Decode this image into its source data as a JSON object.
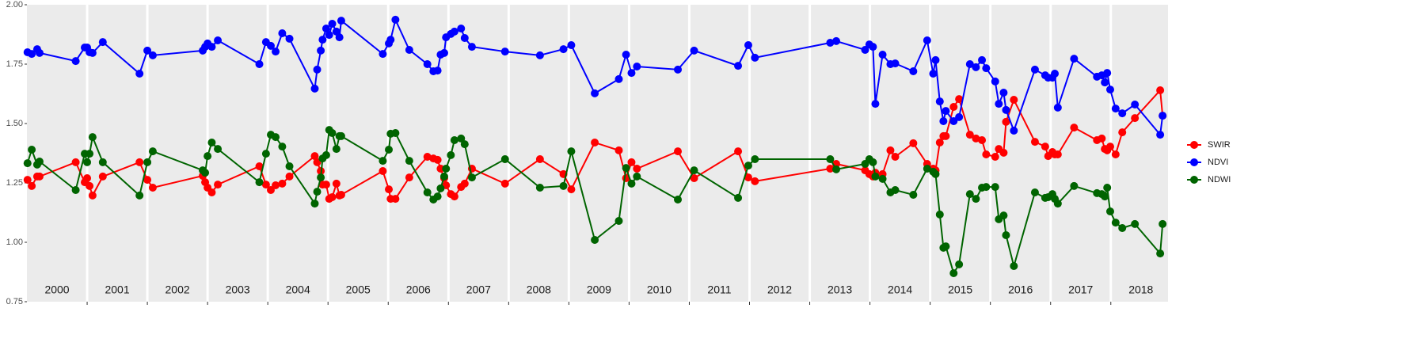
{
  "chart_data": {
    "type": "line",
    "x": [
      2000.01,
      2000.08,
      2000.17,
      2000.21,
      2000.81,
      2000.96,
      2001.0,
      2001.04,
      2001.09,
      2001.26,
      2001.87,
      2002.0,
      2002.09,
      2002.92,
      2002.96,
      2003.0,
      2003.07,
      2003.17,
      2003.86,
      2003.97,
      2004.05,
      2004.13,
      2004.24,
      2004.36,
      2004.78,
      2004.82,
      2004.88,
      2004.91,
      2004.97,
      2005.02,
      2005.07,
      2005.14,
      2005.19,
      2005.22,
      2005.91,
      2006.01,
      2006.04,
      2006.12,
      2006.35,
      2006.65,
      2006.75,
      2006.82,
      2006.87,
      2006.93,
      2006.96,
      2007.04,
      2007.1,
      2007.21,
      2007.27,
      2007.39,
      2007.94,
      2008.52,
      2008.91,
      2009.04,
      2009.43,
      2009.83,
      2009.95,
      2010.04,
      2010.13,
      2010.81,
      2011.08,
      2011.81,
      2011.98,
      2012.09,
      2013.34,
      2013.44,
      2013.92,
      2013.99,
      2014.05,
      2014.09,
      2014.21,
      2014.34,
      2014.42,
      2014.72,
      2014.95,
      2015.05,
      2015.09,
      2015.16,
      2015.22,
      2015.26,
      2015.39,
      2015.48,
      2015.66,
      2015.76,
      2015.86,
      2015.93,
      2016.08,
      2016.14,
      2016.22,
      2016.26,
      2016.39,
      2016.74,
      2016.91,
      2016.96,
      2017.03,
      2017.07,
      2017.12,
      2017.39,
      2017.77,
      2017.85,
      2017.9,
      2017.94,
      2017.99,
      2018.08,
      2018.19,
      2018.4,
      2018.82,
      2018.86
    ],
    "series": [
      {
        "name": "SWIR",
        "color": "#ff0000",
        "values": [
          1.263,
          1.237,
          1.277,
          1.277,
          1.337,
          1.253,
          1.27,
          1.237,
          1.197,
          1.277,
          1.337,
          1.263,
          1.23,
          1.28,
          1.253,
          1.23,
          1.21,
          1.243,
          1.32,
          1.243,
          1.22,
          1.24,
          1.247,
          1.277,
          1.363,
          1.337,
          1.3,
          1.243,
          1.243,
          1.183,
          1.19,
          1.247,
          1.197,
          1.2,
          1.3,
          1.223,
          1.183,
          1.183,
          1.273,
          1.36,
          1.353,
          1.347,
          1.31,
          1.27,
          1.24,
          1.203,
          1.193,
          1.233,
          1.247,
          1.31,
          1.247,
          1.35,
          1.287,
          1.223,
          1.42,
          1.387,
          1.27,
          1.337,
          1.31,
          1.383,
          1.27,
          1.383,
          1.273,
          1.257,
          1.31,
          1.33,
          1.303,
          1.287,
          1.277,
          1.293,
          1.287,
          1.387,
          1.36,
          1.417,
          1.33,
          1.31,
          1.303,
          1.42,
          1.447,
          1.447,
          1.57,
          1.603,
          1.453,
          1.437,
          1.43,
          1.37,
          1.36,
          1.393,
          1.377,
          1.507,
          1.6,
          1.423,
          1.403,
          1.363,
          1.38,
          1.37,
          1.37,
          1.483,
          1.43,
          1.437,
          1.393,
          1.387,
          1.403,
          1.37,
          1.463,
          1.523,
          1.64,
          1.533
        ]
      },
      {
        "name": "NDVI",
        "color": "#0000ff",
        "values": [
          1.8,
          1.793,
          1.813,
          1.797,
          1.763,
          1.82,
          1.82,
          1.8,
          1.797,
          1.843,
          1.71,
          1.807,
          1.787,
          1.807,
          1.823,
          1.837,
          1.823,
          1.85,
          1.75,
          1.843,
          1.827,
          1.803,
          1.88,
          1.857,
          1.647,
          1.727,
          1.807,
          1.853,
          1.9,
          1.873,
          1.92,
          1.887,
          1.863,
          1.933,
          1.793,
          1.837,
          1.853,
          1.937,
          1.81,
          1.75,
          1.72,
          1.723,
          1.79,
          1.797,
          1.863,
          1.877,
          1.887,
          1.9,
          1.86,
          1.823,
          1.803,
          1.787,
          1.813,
          1.83,
          1.627,
          1.687,
          1.79,
          1.713,
          1.74,
          1.727,
          1.807,
          1.743,
          1.83,
          1.777,
          1.84,
          1.847,
          1.81,
          1.833,
          1.823,
          1.583,
          1.79,
          1.75,
          1.753,
          1.72,
          1.85,
          1.71,
          1.767,
          1.593,
          1.51,
          1.553,
          1.51,
          1.527,
          1.75,
          1.737,
          1.767,
          1.733,
          1.677,
          1.583,
          1.63,
          1.557,
          1.47,
          1.727,
          1.703,
          1.693,
          1.693,
          1.71,
          1.567,
          1.773,
          1.697,
          1.703,
          1.673,
          1.713,
          1.643,
          1.563,
          1.543,
          1.58,
          1.453,
          1.533
        ]
      },
      {
        "name": "NDWI",
        "color": "#006400",
        "values": [
          1.333,
          1.39,
          1.327,
          1.34,
          1.22,
          1.373,
          1.337,
          1.373,
          1.443,
          1.337,
          1.197,
          1.337,
          1.383,
          1.303,
          1.293,
          1.363,
          1.42,
          1.393,
          1.253,
          1.373,
          1.453,
          1.443,
          1.403,
          1.32,
          1.163,
          1.213,
          1.273,
          1.353,
          1.367,
          1.473,
          1.46,
          1.393,
          1.447,
          1.447,
          1.343,
          1.39,
          1.457,
          1.46,
          1.343,
          1.21,
          1.18,
          1.193,
          1.227,
          1.277,
          1.31,
          1.367,
          1.43,
          1.437,
          1.413,
          1.273,
          1.35,
          1.23,
          1.237,
          1.383,
          1.01,
          1.09,
          1.313,
          1.247,
          1.277,
          1.18,
          1.303,
          1.187,
          1.323,
          1.35,
          1.35,
          1.307,
          1.33,
          1.35,
          1.337,
          1.277,
          1.267,
          1.21,
          1.22,
          1.2,
          1.31,
          1.297,
          1.287,
          1.117,
          0.977,
          0.983,
          0.87,
          0.907,
          1.203,
          1.183,
          1.23,
          1.233,
          1.233,
          1.097,
          1.113,
          1.03,
          0.9,
          1.21,
          1.187,
          1.19,
          1.203,
          1.183,
          1.163,
          1.237,
          1.207,
          1.203,
          1.193,
          1.23,
          1.13,
          1.083,
          1.06,
          1.077,
          0.953,
          1.077
        ]
      }
    ],
    "xlim": [
      2000,
      2018.95
    ],
    "year_boundaries": [
      2001,
      2002,
      2003,
      2004,
      2005,
      2006,
      2007,
      2008,
      2009,
      2010,
      2011,
      2012,
      2013,
      2014,
      2015,
      2016,
      2017,
      2018
    ],
    "year_labels": [
      "2000",
      "2001",
      "2002",
      "2003",
      "2004",
      "2005",
      "2006",
      "2007",
      "2008",
      "2009",
      "2010",
      "2011",
      "2012",
      "2013",
      "2014",
      "2015",
      "2016",
      "2017",
      "2018"
    ],
    "ylim": [
      0.75,
      2.0
    ],
    "yticks": [
      {
        "value": 0.75,
        "label": "0.75"
      },
      {
        "value": 1.0,
        "label": "1.00"
      },
      {
        "value": 1.25,
        "label": "1.25"
      },
      {
        "value": 1.5,
        "label": "1.50"
      },
      {
        "value": 1.75,
        "label": "1.75"
      },
      {
        "value": 2.0,
        "label": "2.00"
      }
    ],
    "grid": false,
    "legend": "right"
  }
}
